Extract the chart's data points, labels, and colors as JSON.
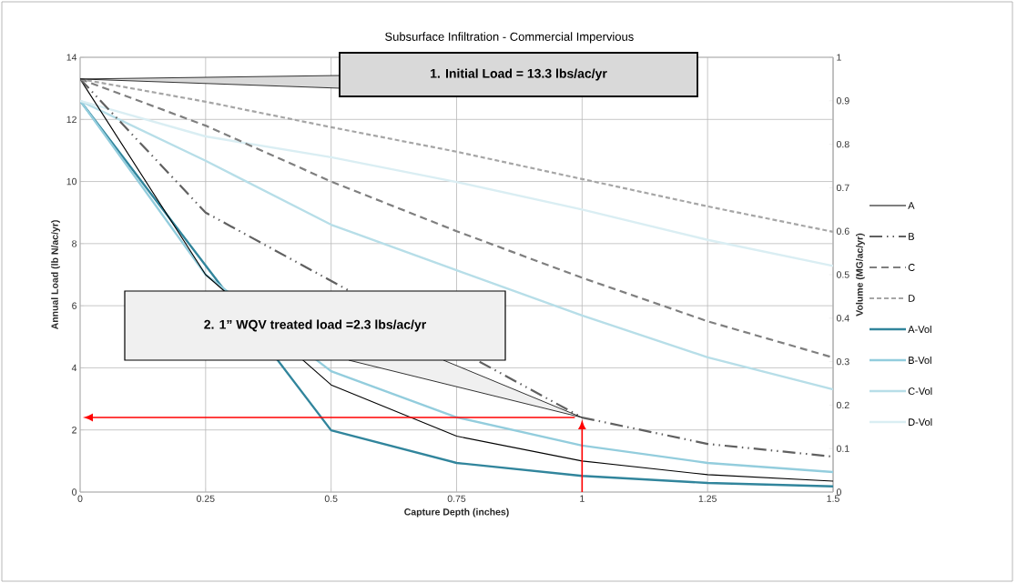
{
  "chart_data": {
    "type": "line",
    "title": "Subsurface Infiltration - Commercial Impervious",
    "xlabel": "Capture Depth (inches)",
    "ylabel": "Annual Load (lb N/ac/yr)",
    "y2label": "Volume (MG/ac/yr)",
    "x": [
      0,
      0.25,
      0.5,
      0.75,
      1,
      1.25,
      1.5
    ],
    "series": [
      {
        "name": "A",
        "color": "#000000",
        "line_style": "solid",
        "values": [
          13.3,
          7.0,
          3.45,
          1.8,
          1.0,
          0.56,
          0.35
        ]
      },
      {
        "name": "B",
        "color": "#606060",
        "line_style": "dashdot",
        "values": [
          13.3,
          9.0,
          null,
          null,
          2.4,
          1.55,
          1.14
        ]
      },
      {
        "name": "C",
        "color": "#7f7f7f",
        "line_style": "dashed",
        "values": [
          13.3,
          11.8,
          10.0,
          8.4,
          6.9,
          5.5,
          4.33
        ]
      },
      {
        "name": "D",
        "color": "#a6a6a6",
        "line_style": "dotted",
        "values": [
          13.3,
          12.57,
          11.75,
          10.96,
          10.08,
          9.2,
          8.38
        ]
      },
      {
        "name": "A-Vol",
        "color": "#31859c",
        "axis": "y2",
        "line_style": "solid",
        "values": [
          0.9,
          null,
          0.142,
          0.067,
          0.037,
          0.021,
          0.013
        ]
      },
      {
        "name": "B-Vol",
        "color": "#93cddd",
        "axis": "y2",
        "line_style": "solid",
        "values": [
          0.9,
          0.5,
          0.278,
          0.172,
          0.107,
          0.067,
          0.046
        ]
      },
      {
        "name": "C-Vol",
        "color": "#b7dee8",
        "axis": "y2",
        "line_style": "solid",
        "values": [
          0.9,
          0.762,
          0.615,
          0.51,
          0.406,
          0.31,
          0.236
        ]
      },
      {
        "name": "D-Vol",
        "color": "#daeef3",
        "axis": "y2",
        "line_style": "solid",
        "values": [
          0.9,
          0.818,
          0.77,
          0.713,
          0.65,
          0.58,
          0.52
        ]
      }
    ],
    "xlim": [
      0,
      1.5
    ],
    "xticks": [
      0,
      0.25,
      0.5,
      0.75,
      1,
      1.25,
      1.5
    ],
    "ylim": [
      0,
      14
    ],
    "yticks": [
      0,
      2,
      4,
      6,
      8,
      10,
      12,
      14
    ],
    "y2lim": [
      0,
      1
    ],
    "y2ticks": [
      0,
      0.1,
      0.2,
      0.3,
      0.4,
      0.5,
      0.6,
      0.7,
      0.8,
      0.9,
      1
    ],
    "grid": true,
    "legend": "right",
    "annotations": [
      "1. Initial Load = 13.3 lbs/ac/yr",
      "2. 1” WQV treated load =2.3 lbs/ac/yr"
    ]
  }
}
